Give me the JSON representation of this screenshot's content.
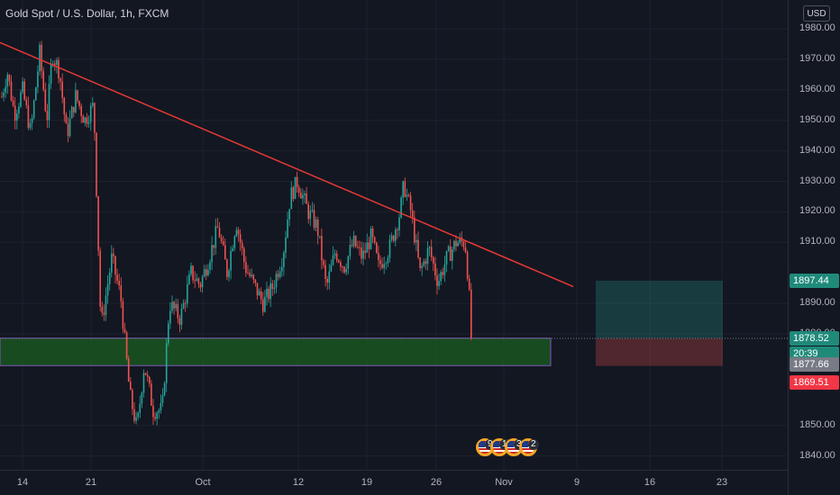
{
  "header": {
    "title": "Gold Spot / U.S. Dollar, 1h, FXCM",
    "currency_button": "USD"
  },
  "price_axis": {
    "ticks": [
      "1980.00",
      "1970.00",
      "1960.00",
      "1950.00",
      "1940.00",
      "1930.00",
      "1920.00",
      "1910.00",
      "1890.00",
      "1880.00",
      "1850.00",
      "1840.00"
    ],
    "badges": [
      {
        "label": "1897.44",
        "price": 1897.44,
        "bg": "#1f8a7a",
        "fg": "#ffffff"
      },
      {
        "label": "1878.52",
        "price": 1878.52,
        "bg": "#1f8a7a",
        "fg": "#ffffff"
      },
      {
        "label": "20:39",
        "price": 1873.6,
        "bg": "#1f8a7a",
        "fg": "#ffffff"
      },
      {
        "label": "1877.66",
        "price": 1869.9,
        "bg": "#787b86",
        "fg": "#ffffff"
      },
      {
        "label": "1869.51",
        "price": 1864.2,
        "bg": "#f23645",
        "fg": "#ffffff"
      }
    ]
  },
  "time_axis": {
    "ticks": [
      "14",
      "21",
      "Oct",
      "12",
      "19",
      "26",
      "Nov",
      "9",
      "16",
      "23"
    ]
  },
  "chart_data": {
    "type": "candlestick",
    "symbol": "Gold Spot / U.S. Dollar",
    "interval": "1h",
    "ylim": [
      1836,
      1985
    ],
    "x_ticks": [
      "14",
      "21",
      "Oct",
      "12",
      "19",
      "26",
      "Nov",
      "9",
      "16",
      "23"
    ],
    "y_ticks": [
      1980,
      1970,
      1960,
      1950,
      1940,
      1930,
      1920,
      1910,
      1890,
      1880,
      1850,
      1840
    ],
    "price_path": [
      [
        0,
        1955
      ],
      [
        8,
        1966
      ],
      [
        16,
        1952
      ],
      [
        25,
        1960
      ],
      [
        34,
        1946
      ],
      [
        44,
        1972
      ],
      [
        52,
        1950
      ],
      [
        58,
        1972
      ],
      [
        66,
        1966
      ],
      [
        74,
        1945
      ],
      [
        84,
        1958
      ],
      [
        94,
        1950
      ],
      [
        104,
        1955
      ],
      [
        112,
        1882
      ],
      [
        124,
        1905
      ],
      [
        134,
        1892
      ],
      [
        144,
        1860
      ],
      [
        152,
        1849
      ],
      [
        160,
        1870
      ],
      [
        170,
        1855
      ],
      [
        180,
        1855
      ],
      [
        188,
        1890
      ],
      [
        200,
        1885
      ],
      [
        212,
        1900
      ],
      [
        222,
        1896
      ],
      [
        232,
        1905
      ],
      [
        242,
        1915
      ],
      [
        252,
        1900
      ],
      [
        262,
        1917
      ],
      [
        272,
        1902
      ],
      [
        282,
        1896
      ],
      [
        292,
        1890
      ],
      [
        302,
        1895
      ],
      [
        314,
        1906
      ],
      [
        322,
        1925
      ],
      [
        330,
        1930
      ],
      [
        342,
        1920
      ],
      [
        352,
        1915
      ],
      [
        362,
        1895
      ],
      [
        372,
        1907
      ],
      [
        382,
        1902
      ],
      [
        392,
        1910
      ],
      [
        402,
        1905
      ],
      [
        412,
        1912
      ],
      [
        420,
        1902
      ],
      [
        432,
        1908
      ],
      [
        444,
        1920
      ],
      [
        448,
        1929
      ],
      [
        456,
        1920
      ],
      [
        466,
        1900
      ],
      [
        476,
        1908
      ],
      [
        486,
        1897
      ],
      [
        496,
        1905
      ],
      [
        506,
        1910
      ],
      [
        516,
        1910
      ],
      [
        520,
        1896
      ],
      [
        523,
        1877.66
      ]
    ],
    "trendline": {
      "from": [
        0,
        1975.5
      ],
      "to": [
        636,
        1895.5
      ],
      "color": "#e53935"
    },
    "support_zone": {
      "x_from": 0,
      "x_to": 611,
      "price_top": 1878.6,
      "price_bottom": 1869.6,
      "color": "#1b5e20"
    },
    "position": {
      "x_from": 661,
      "x_to": 802,
      "target": 1897.44,
      "entry": 1878.52,
      "stop": 1869.51
    },
    "last_price": 1877.66,
    "events": [
      {
        "label": "9",
        "icon": "us-flag-icon"
      },
      {
        "label": "10",
        "icon": "us-flag-icon"
      },
      {
        "label": "3",
        "icon": "us-flag-icon"
      },
      {
        "label": "2",
        "icon": "us-flag-icon"
      }
    ]
  }
}
